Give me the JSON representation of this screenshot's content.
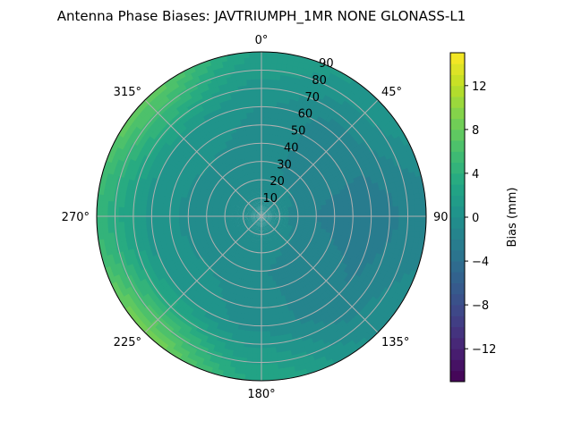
{
  "chart_data": {
    "type": "heatmap",
    "projection": "polar",
    "title": "Antenna Phase Biases: JAVTRIUMPH_1MR  NONE GLONASS-L1",
    "theta_direction": "clockwise",
    "theta_zero": "top",
    "theta_ticks": [
      0,
      45,
      90,
      135,
      180,
      225,
      270,
      315
    ],
    "theta_tick_labels": [
      "0°",
      "45°",
      "90",
      "135°",
      "180°",
      "225°",
      "270°",
      "315°"
    ],
    "r_ticks": [
      10,
      20,
      30,
      40,
      50,
      60,
      70,
      80,
      90
    ],
    "r_tick_labels": [
      "10",
      "20",
      "30",
      "40",
      "50",
      "60",
      "70",
      "80",
      "90"
    ],
    "rlim": [
      0,
      90
    ],
    "grid": true,
    "colormap": "viridis",
    "colorbar": {
      "label": "Bias (mm)",
      "vmin": -15,
      "vmax": 15,
      "levels": 30,
      "ticks": [
        -12,
        -8,
        -4,
        0,
        4,
        8,
        12
      ],
      "tick_labels": [
        "−12",
        "−8",
        "−4",
        "0",
        "4",
        "8",
        "12"
      ]
    },
    "field_samples": {
      "azimuth_deg": [
        0,
        45,
        90,
        135,
        180,
        225,
        270,
        315
      ],
      "bias_mm_at_r0": [
        0,
        0,
        0,
        0,
        0,
        0,
        0,
        0
      ],
      "bias_mm_at_r30": [
        -0.5,
        -1.5,
        -2,
        -1.5,
        -1,
        -0.5,
        -0.5,
        -0.5
      ],
      "bias_mm_at_r60": [
        0,
        -1.5,
        -2.5,
        -2,
        -0.5,
        1,
        0.5,
        1
      ],
      "bias_mm_at_r90": [
        2,
        1,
        -1.5,
        0,
        3,
        9,
        5,
        8
      ]
    }
  }
}
